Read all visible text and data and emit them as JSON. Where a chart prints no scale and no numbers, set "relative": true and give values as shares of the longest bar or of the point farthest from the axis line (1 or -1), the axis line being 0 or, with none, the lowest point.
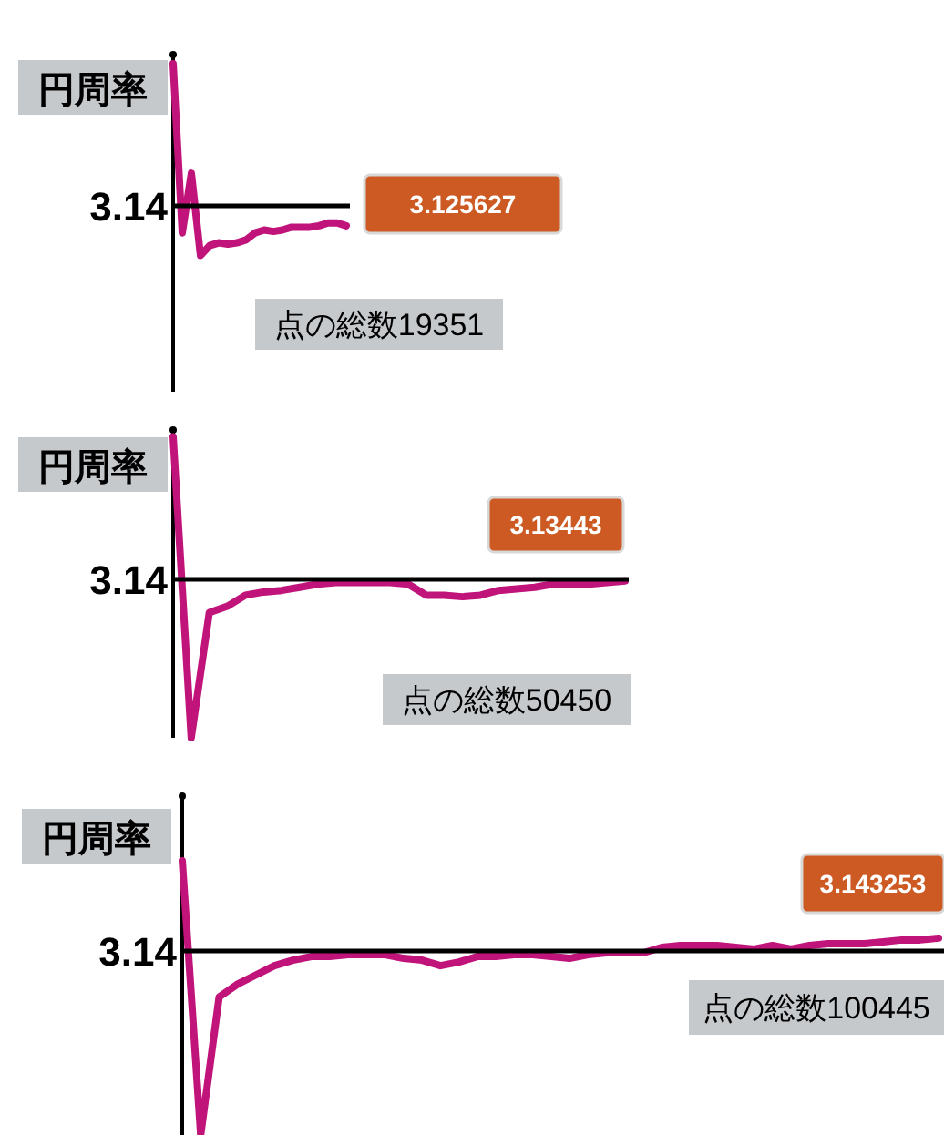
{
  "chart_data": [
    {
      "type": "line",
      "relative": true,
      "ylabel": "円周率",
      "color": "#c0147a",
      "categories": [
        null,
        null,
        null,
        null,
        null,
        null,
        null,
        null,
        null,
        null,
        null,
        null,
        null,
        null,
        null,
        null,
        null,
        null,
        null,
        null
      ],
      "values": [
        1,
        -0.19,
        0.23,
        -0.35,
        -0.28,
        -0.26,
        -0.27,
        -0.26,
        -0.24,
        -0.19,
        -0.17,
        -0.18,
        -0.17,
        -0.15,
        -0.15,
        -0.15,
        -0.14,
        -0.12,
        -0.12,
        -0.14
      ],
      "annotations": [
        "3.14",
        "3.125627",
        "点の総数19351"
      ]
    },
    {
      "type": "line",
      "relative": true,
      "ylabel": "円周率",
      "color": "#c0147a",
      "categories": [
        null,
        null,
        null,
        null,
        null,
        null,
        null,
        null,
        null,
        null,
        null,
        null,
        null,
        null,
        null,
        null,
        null,
        null,
        null,
        null,
        null,
        null,
        null,
        null,
        null,
        null
      ],
      "values": [
        0.9,
        -1,
        -0.21,
        -0.17,
        -0.1,
        -0.08,
        -0.07,
        -0.05,
        -0.03,
        -0.02,
        -0.02,
        -0.02,
        -0.02,
        -0.03,
        -0.1,
        -0.1,
        -0.11,
        -0.1,
        -0.07,
        -0.06,
        -0.05,
        -0.03,
        -0.03,
        -0.03,
        -0.02,
        -0.01
      ],
      "annotations": [
        "3.14",
        "3.13443",
        "点の総数50450"
      ]
    },
    {
      "type": "line",
      "relative": true,
      "ylabel": "円周率",
      "color": "#c0147a",
      "categories": [
        null,
        null,
        null,
        null,
        null,
        null,
        null,
        null,
        null,
        null,
        null,
        null,
        null,
        null,
        null,
        null,
        null,
        null,
        null,
        null,
        null,
        null,
        null,
        null,
        null,
        null,
        null,
        null,
        null,
        null,
        null,
        null,
        null,
        null,
        null,
        null,
        null,
        null,
        null,
        null,
        null,
        null
      ],
      "values": [
        0.49,
        -1,
        -0.25,
        -0.18,
        -0.13,
        -0.08,
        -0.05,
        -0.03,
        -0.03,
        -0.02,
        -0.02,
        -0.02,
        -0.04,
        -0.05,
        -0.08,
        -0.06,
        -0.03,
        -0.03,
        -0.02,
        -0.02,
        -0.03,
        -0.04,
        -0.02,
        -0.01,
        -0.01,
        -0.01,
        0.02,
        0.03,
        0.03,
        0.03,
        0.02,
        0.01,
        0.03,
        0.01,
        0.03,
        0.04,
        0.04,
        0.04,
        0.05,
        0.06,
        0.06,
        0.07
      ],
      "annotations": [
        "3.14",
        "3.143253",
        "点の総数100445"
      ]
    }
  ]
}
